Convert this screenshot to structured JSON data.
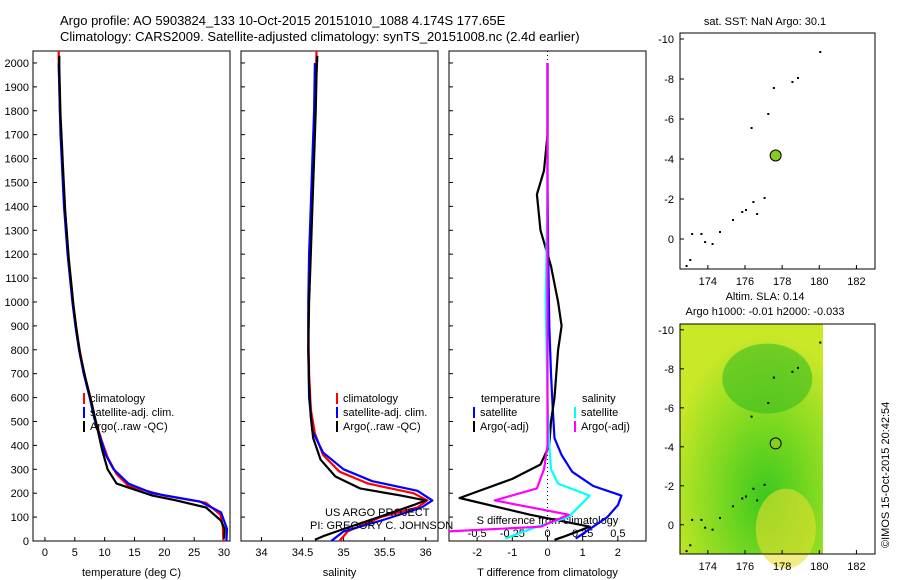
{
  "header": {
    "line1": "Argo profile: AO 5903824_133 10-Oct-2015 20151010_1088 4.174S 177.65E",
    "line2": "Climatology: CARS2009. Satellite-adjusted climatology: synTS_20151008.nc (2.4d earlier)"
  },
  "side_stamp": "©IMOS 15-Oct-2015 20:42:54",
  "colors": {
    "climatology": "#ff0000",
    "satellite": "#0000ff",
    "argo": "#000000",
    "sal_satellite": "#00ffff",
    "sal_argo": "#ff00ff",
    "marker": "#88cc22"
  },
  "chart_data": [
    {
      "type": "line",
      "name": "temperature profile",
      "xlabel": "temperature (deg C)",
      "ylabel": "",
      "xlim": [
        -2,
        31
      ],
      "ylim": [
        2050,
        0
      ],
      "x_ticks": [
        0,
        5,
        10,
        15,
        20,
        25,
        30
      ],
      "y_ticks": [
        0,
        100,
        200,
        300,
        400,
        500,
        600,
        700,
        800,
        900,
        1000,
        1100,
        1200,
        1300,
        1400,
        1500,
        1600,
        1700,
        1800,
        1900,
        2000
      ],
      "legend": [
        "climatology",
        "satellite-adj. clim.",
        "Argo(..raw -QC)"
      ],
      "legend_placement": "lower-middle",
      "series": [
        {
          "name": "climatology",
          "color_key": "climatology",
          "points": [
            [
              29.9,
              0
            ],
            [
              29.8,
              60
            ],
            [
              29.4,
              110
            ],
            [
              27,
              160
            ],
            [
              20,
              190
            ],
            [
              14,
              230
            ],
            [
              12,
              280
            ],
            [
              10.5,
              350
            ],
            [
              9.5,
              420
            ],
            [
              8.5,
              500
            ],
            [
              7.6,
              600
            ],
            [
              6.6,
              700
            ],
            [
              5.8,
              800
            ],
            [
              5.2,
              900
            ],
            [
              4.7,
              1000
            ],
            [
              4.3,
              1100
            ],
            [
              3.9,
              1200
            ],
            [
              3.6,
              1300
            ],
            [
              3.3,
              1400
            ],
            [
              3.1,
              1500
            ],
            [
              2.9,
              1600
            ],
            [
              2.7,
              1700
            ],
            [
              2.5,
              1800
            ],
            [
              2.4,
              1900
            ],
            [
              2.3,
              2000
            ],
            [
              2.3,
              2050
            ]
          ]
        },
        {
          "name": "satellite-adj. clim.",
          "color_key": "satellite",
          "points": [
            [
              30.4,
              0
            ],
            [
              30.5,
              50
            ],
            [
              29.5,
              120
            ],
            [
              26,
              165
            ],
            [
              18,
              200
            ],
            [
              14,
              240
            ],
            [
              11.5,
              300
            ],
            [
              10.2,
              360
            ],
            [
              9.3,
              430
            ],
            [
              8.3,
              510
            ],
            [
              7.5,
              600
            ],
            [
              6.5,
              700
            ],
            [
              5.7,
              800
            ],
            [
              5.1,
              900
            ],
            [
              4.6,
              1000
            ],
            [
              4.2,
              1100
            ],
            [
              3.8,
              1200
            ],
            [
              3.5,
              1300
            ],
            [
              3.2,
              1400
            ],
            [
              3.0,
              1500
            ],
            [
              2.8,
              1600
            ],
            [
              2.6,
              1700
            ],
            [
              2.5,
              1800
            ],
            [
              2.4,
              1900
            ],
            [
              2.3,
              2000
            ]
          ]
        },
        {
          "name": "Argo(..raw -QC)",
          "color_key": "argo",
          "points": [
            [
              30.0,
              10
            ],
            [
              30.1,
              50
            ],
            [
              29.5,
              85
            ],
            [
              27,
              140
            ],
            [
              22,
              170
            ],
            [
              18,
              190
            ],
            [
              12,
              240
            ],
            [
              10.5,
              300
            ],
            [
              9.6,
              380
            ],
            [
              8.7,
              480
            ],
            [
              7.8,
              580
            ],
            [
              6.8,
              680
            ],
            [
              5.9,
              780
            ],
            [
              5.3,
              880
            ],
            [
              4.8,
              980
            ],
            [
              4.4,
              1080
            ],
            [
              4.0,
              1180
            ],
            [
              3.7,
              1280
            ],
            [
              3.4,
              1380
            ],
            [
              3.2,
              1480
            ],
            [
              3.0,
              1580
            ],
            [
              2.8,
              1680
            ],
            [
              2.6,
              1780
            ],
            [
              2.5,
              1880
            ],
            [
              2.4,
              1980
            ],
            [
              2.4,
              2030
            ]
          ]
        }
      ]
    },
    {
      "type": "line",
      "name": "salinity profile",
      "xlabel": "salinity",
      "xlim": [
        33.75,
        36.15
      ],
      "ylim": [
        2050,
        0
      ],
      "x_ticks": [
        34,
        34.5,
        35,
        35.5,
        36
      ],
      "legend": [
        "climatology",
        "satellite-adj. clim.",
        "Argo(..raw -QC)"
      ],
      "legend_placement": "lower-middle",
      "annotation": [
        "US ARGO PROJECT",
        "PI: GREGORY C. JOHNSON"
      ],
      "series": [
        {
          "name": "climatology",
          "color_key": "climatology",
          "points": [
            [
              34.95,
              0
            ],
            [
              35.05,
              40
            ],
            [
              35.45,
              100
            ],
            [
              35.9,
              140
            ],
            [
              36.02,
              170
            ],
            [
              35.85,
              200
            ],
            [
              35.3,
              240
            ],
            [
              34.95,
              290
            ],
            [
              34.75,
              360
            ],
            [
              34.65,
              450
            ],
            [
              34.6,
              550
            ],
            [
              34.58,
              700
            ],
            [
              34.57,
              900
            ],
            [
              34.58,
              1100
            ],
            [
              34.6,
              1300
            ],
            [
              34.62,
              1500
            ],
            [
              34.64,
              1700
            ],
            [
              34.66,
              1900
            ],
            [
              34.67,
              2050
            ]
          ]
        },
        {
          "name": "satellite-adj. clim.",
          "color_key": "satellite",
          "points": [
            [
              34.85,
              0
            ],
            [
              35.0,
              40
            ],
            [
              35.5,
              90
            ],
            [
              35.95,
              140
            ],
            [
              36.08,
              170
            ],
            [
              35.9,
              210
            ],
            [
              35.35,
              250
            ],
            [
              35.0,
              300
            ],
            [
              34.75,
              370
            ],
            [
              34.62,
              460
            ],
            [
              34.58,
              600
            ],
            [
              34.57,
              800
            ],
            [
              34.57,
              1000
            ],
            [
              34.58,
              1200
            ],
            [
              34.6,
              1400
            ],
            [
              34.62,
              1600
            ],
            [
              34.64,
              1800
            ],
            [
              34.65,
              2000
            ]
          ]
        },
        {
          "name": "Argo(..raw -QC)",
          "color_key": "argo",
          "points": [
            [
              34.65,
              5
            ],
            [
              34.75,
              20
            ],
            [
              35.0,
              50
            ],
            [
              35.6,
              120
            ],
            [
              35.85,
              150
            ],
            [
              36.0,
              170
            ],
            [
              35.7,
              190
            ],
            [
              35.2,
              220
            ],
            [
              34.9,
              270
            ],
            [
              34.72,
              340
            ],
            [
              34.63,
              430
            ],
            [
              34.6,
              520
            ],
            [
              34.58,
              650
            ],
            [
              34.57,
              800
            ],
            [
              34.58,
              1000
            ],
            [
              34.6,
              1200
            ],
            [
              34.62,
              1400
            ],
            [
              34.64,
              1600
            ],
            [
              34.66,
              1800
            ],
            [
              34.67,
              1950
            ],
            [
              34.68,
              2030
            ]
          ]
        }
      ]
    },
    {
      "type": "line",
      "name": "difference from climatology",
      "xlabel": "T difference from climatology",
      "xlabel_top": "S difference from climatology",
      "xlim": [
        -2.8,
        2.8
      ],
      "ylim": [
        2050,
        0
      ],
      "x_ticks": [
        -2,
        -1,
        0,
        1,
        2
      ],
      "sal_ticks": [
        -0.5,
        -0.25,
        0,
        0.25,
        0.5
      ],
      "sal_tick_labels": [
        "-0.5",
        "-0.25",
        "0",
        "0.25",
        "0.5"
      ],
      "legend_t_header": "temperature",
      "legend_s_header": "salinity",
      "legend_t": [
        "satellite",
        "Argo(-adj)"
      ],
      "legend_s": [
        "satellite",
        "Argo(-adj)"
      ],
      "legend_placement": "lower-middle",
      "series": [
        {
          "name": "satellite",
          "color_key": "satellite",
          "points": [
            [
              0.8,
              10
            ],
            [
              1.3,
              60
            ],
            [
              1.7,
              100
            ],
            [
              2.0,
              150
            ],
            [
              2.1,
              190
            ],
            [
              1.3,
              230
            ],
            [
              0.7,
              290
            ],
            [
              0.4,
              360
            ],
            [
              0.2,
              430
            ],
            [
              0.15,
              550
            ],
            [
              0.1,
              700
            ],
            [
              0.05,
              900
            ],
            [
              0.02,
              1200
            ],
            [
              0,
              1500
            ],
            [
              0,
              2000
            ]
          ]
        },
        {
          "name": "Argo(-adj)",
          "color_key": "argo",
          "points": [
            [
              0.2,
              5
            ],
            [
              0.5,
              20
            ],
            [
              1.2,
              60
            ],
            [
              -0.5,
              110
            ],
            [
              -2.5,
              180
            ],
            [
              -1.0,
              260
            ],
            [
              -0.2,
              320
            ],
            [
              0.05,
              400
            ],
            [
              0.1,
              500
            ],
            [
              0.2,
              600
            ],
            [
              0.3,
              800
            ],
            [
              0.4,
              900
            ],
            [
              0.3,
              1000
            ],
            [
              0.1,
              1150
            ],
            [
              -0.2,
              1300
            ],
            [
              -0.3,
              1450
            ],
            [
              -0.1,
              1550
            ],
            [
              0,
              1700
            ],
            [
              0,
              2000
            ]
          ]
        },
        {
          "name": "salinity satellite",
          "color_key": "sal_satellite",
          "points": [
            [
              -1.2,
              10
            ],
            [
              -0.3,
              60
            ],
            [
              0.6,
              100
            ],
            [
              1.2,
              190
            ],
            [
              0.3,
              240
            ],
            [
              0.1,
              300
            ],
            [
              0.05,
              400
            ],
            [
              0,
              600
            ],
            [
              -0.05,
              1000
            ],
            [
              0,
              1500
            ],
            [
              0,
              2000
            ]
          ]
        },
        {
          "name": "salinity Argo(-adj)",
          "color_key": "sal_argo",
          "points": [
            [
              -2.8,
              40
            ],
            [
              -0.2,
              60
            ],
            [
              0.6,
              110
            ],
            [
              -1.5,
              170
            ],
            [
              -0.3,
              220
            ],
            [
              -0.1,
              300
            ],
            [
              0,
              400
            ],
            [
              0,
              2000
            ]
          ]
        }
      ]
    },
    {
      "type": "scatter",
      "name": "SST map",
      "title_lines": [
        "sat. SST: NaN Argo: 30.1"
      ],
      "xlim": [
        172.5,
        183
      ],
      "ylim": [
        -10.3,
        1.5
      ],
      "x_ticks": [
        174,
        176,
        178,
        180,
        182
      ],
      "y_ticks": [
        0,
        -2,
        -4,
        -6,
        -8,
        -10
      ],
      "argo_position": [
        177.65,
        -4.174
      ],
      "land_points": [
        [
          172.8,
          1.3
        ],
        [
          173.0,
          1.0
        ],
        [
          173.1,
          -0.3
        ],
        [
          173.6,
          -0.3
        ],
        [
          173.8,
          0.1
        ],
        [
          174.2,
          0.2
        ],
        [
          174.6,
          -0.4
        ],
        [
          175.3,
          -1.0
        ],
        [
          175.8,
          -1.4
        ],
        [
          176.0,
          -1.5
        ],
        [
          176.4,
          -1.9
        ],
        [
          176.6,
          -1.3
        ],
        [
          177.0,
          -2.1
        ],
        [
          176.3,
          -5.6
        ],
        [
          177.2,
          -6.3
        ],
        [
          177.5,
          -7.6
        ],
        [
          178.5,
          -7.9
        ],
        [
          178.8,
          -8.1
        ],
        [
          180.0,
          -9.4
        ]
      ]
    },
    {
      "type": "heatmap",
      "name": "altimetry map",
      "title_lines": [
        "Altim. SLA: 0.14",
        "Argo h1000: -0.01 h2000: -0.033"
      ],
      "xlim": [
        172.5,
        183
      ],
      "ylim": [
        -10.3,
        1.5
      ],
      "x_ticks": [
        174,
        176,
        178,
        180,
        182
      ],
      "y_ticks": [
        0,
        -2,
        -4,
        -6,
        -8,
        -10
      ],
      "data_extent_x": [
        172.5,
        180.2
      ],
      "argo_position": [
        177.65,
        -4.174
      ],
      "land_points": [
        [
          172.8,
          1.3
        ],
        [
          173.0,
          1.0
        ],
        [
          173.1,
          -0.3
        ],
        [
          173.6,
          -0.3
        ],
        [
          173.8,
          0.1
        ],
        [
          174.2,
          0.2
        ],
        [
          174.6,
          -0.4
        ],
        [
          175.3,
          -1.0
        ],
        [
          175.8,
          -1.4
        ],
        [
          176.0,
          -1.5
        ],
        [
          176.4,
          -1.9
        ],
        [
          176.6,
          -1.3
        ],
        [
          177.0,
          -2.1
        ],
        [
          176.3,
          -5.6
        ],
        [
          177.2,
          -6.3
        ],
        [
          177.5,
          -7.6
        ],
        [
          178.5,
          -7.9
        ],
        [
          178.8,
          -8.1
        ],
        [
          180.0,
          -9.4
        ]
      ]
    }
  ]
}
